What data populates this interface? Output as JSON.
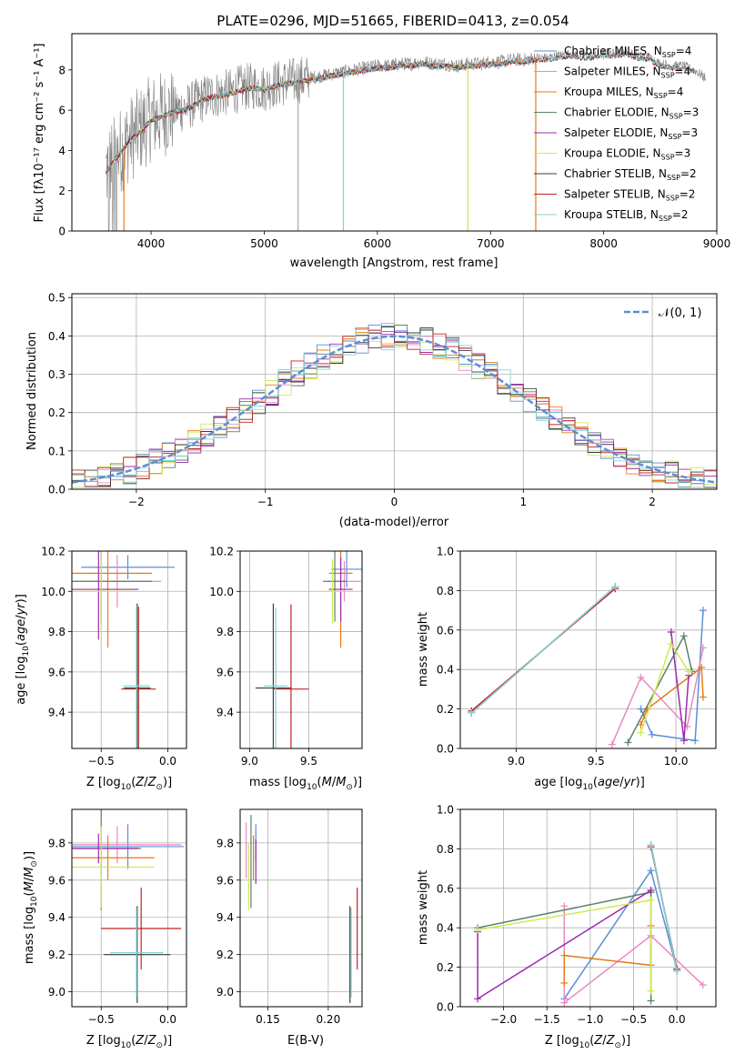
{
  "figure": {
    "title": "PLATE=0296, MJD=51665, FIBERID=0413, z=0.054"
  },
  "chart_data": [
    {
      "id": "spectrum",
      "type": "line",
      "xlabel": "wavelength [Angstrom, rest frame]",
      "ylabel": "Flux [f$_\\lambda$10$^{-17}$ erg cm$^{-2}$ s$^{-1}$ A$^{-1}$]",
      "ylabel_display": "Flux [fλ10⁻¹⁷ erg cm⁻² s⁻¹ A⁻¹]",
      "xlim": [
        3300,
        9000
      ],
      "ylim": [
        0,
        9.8
      ],
      "xticks": [
        4000,
        5000,
        6000,
        7000,
        8000,
        9000
      ],
      "yticks": [
        0,
        2,
        4,
        6,
        8
      ],
      "grid": false,
      "legend_position": "top-right",
      "data_series": {
        "name": "data",
        "color": "#808080",
        "x": [
          3600,
          3700,
          3800,
          3900,
          4000,
          4100,
          4200,
          4300,
          4400,
          4500,
          4600,
          4700,
          4800,
          4900,
          5000,
          5100,
          5200,
          5300,
          5400,
          5500,
          5600,
          5700,
          5800,
          5900,
          6000,
          6100,
          6200,
          6300,
          6400,
          6500,
          6600,
          6700,
          6800,
          6900,
          7000,
          7100,
          7200,
          7300,
          7400,
          7500,
          7600,
          7700,
          7800,
          7900,
          8000,
          8100,
          8200,
          8300,
          8400,
          8500,
          8600,
          8700,
          8800,
          8900
        ],
        "y": [
          3.0,
          3.8,
          4.5,
          5.0,
          5.6,
          5.8,
          6.0,
          6.1,
          6.4,
          6.7,
          6.8,
          6.9,
          7.1,
          7.2,
          7.1,
          7.3,
          7.4,
          7.5,
          7.6,
          7.7,
          7.8,
          7.9,
          8.0,
          8.1,
          8.2,
          8.2,
          8.3,
          8.3,
          8.4,
          8.3,
          8.3,
          8.2,
          8.3,
          8.3,
          8.4,
          8.4,
          8.5,
          8.5,
          8.6,
          8.6,
          8.7,
          8.8,
          8.7,
          8.7,
          8.8,
          8.8,
          8.9,
          8.7,
          8.6,
          8.3,
          8.2,
          8.2,
          8.0,
          7.6
        ]
      },
      "models": [
        {
          "name": "Chabrier MILES, N$_{SSP}$=4",
          "label": "Chabrier MILES, N",
          "sub": "SSP",
          "suffix": "=4",
          "color": "#5b8fd6",
          "xmax": 7400
        },
        {
          "name": "Salpeter MILES, N$_{SSP}$=4",
          "label": "Salpeter MILES, N",
          "sub": "SSP",
          "suffix": "=4",
          "color": "#e889c3",
          "xmax": 7400
        },
        {
          "name": "Kroupa MILES, N$_{SSP}$=4",
          "label": "Kroupa MILES, N",
          "sub": "SSP",
          "suffix": "=4",
          "color": "#e87a1b",
          "xmax": 7400
        },
        {
          "name": "Chabrier ELODIE, N$_{SSP}$=3",
          "label": "Chabrier ELODIE, N",
          "sub": "SSP",
          "suffix": "=3",
          "color": "#5a8466",
          "xmax": 6800
        },
        {
          "name": "Salpeter ELODIE, N$_{SSP}$=3",
          "label": "Salpeter ELODIE, N",
          "sub": "SSP",
          "suffix": "=3",
          "color": "#9a2bb0",
          "xmax": 6800
        },
        {
          "name": "Kroupa ELODIE, N$_{SSP}$=3",
          "label": "Kroupa ELODIE, N",
          "sub": "SSP",
          "suffix": "=3",
          "color": "#d2e853",
          "xmax": 6800
        },
        {
          "name": "Chabrier STELIB, N$_{SSP}$=2",
          "label": "Chabrier STELIB, N",
          "sub": "SSP",
          "suffix": "=2",
          "color": "#3d3d3d",
          "xmax": 8800
        },
        {
          "name": "Salpeter STELIB, N$_{SSP}$=2",
          "label": "Salpeter STELIB, N",
          "sub": "SSP",
          "suffix": "=2",
          "color": "#c42222",
          "xmax": 8800
        },
        {
          "name": "Kroupa STELIB, N$_{SSP}$=2",
          "label": "Kroupa STELIB, N",
          "sub": "SSP",
          "suffix": "=2",
          "color": "#7fd3d6",
          "xmax": 8800
        }
      ]
    },
    {
      "id": "residuals",
      "type": "line",
      "xlabel": "(data-model)/error",
      "ylabel": "Normed distribution",
      "xlim": [
        -2.5,
        2.5
      ],
      "ylim": [
        0,
        0.51
      ],
      "xticks": [
        -2,
        -1,
        0,
        1,
        2
      ],
      "yticks": [
        0.0,
        0.1,
        0.2,
        0.3,
        0.4,
        0.5
      ],
      "grid": true,
      "legend_position": "top-right",
      "legend": "$\\mathcal{N}(0,1)$",
      "legend_display": "𝒩(0, 1)",
      "normal_color": "#5b8fd6",
      "histogram_bin_width": 0.1
    },
    {
      "id": "age-vs-Z",
      "type": "scatter",
      "xlabel": "Z [log$_{10}$(Z/Z$_\\odot$)]",
      "ylabel": "age  [log$_{10}$(age/yr)]",
      "xlim": [
        -0.72,
        0.14
      ],
      "ylim": [
        9.22,
        10.2
      ],
      "xticks": [
        -0.5,
        0.0
      ],
      "yticks": [
        9.4,
        9.6,
        9.8,
        10.0,
        10.2
      ],
      "grid": true
    },
    {
      "id": "age-vs-mass",
      "type": "scatter",
      "xlabel": "mass [log$_{10}$(M/M$_\\odot$)]",
      "ylabel": "",
      "xlim": [
        8.92,
        9.95
      ],
      "ylim": [
        9.22,
        10.2
      ],
      "xticks": [
        9.0,
        9.5
      ],
      "yticks": [
        9.4,
        9.6,
        9.8,
        10.0,
        10.2
      ],
      "grid": true
    },
    {
      "id": "weight-vs-age",
      "type": "line",
      "xlabel": "age  [log$_{10}$(age/yr)]",
      "ylabel": "mass weight",
      "xlim": [
        8.65,
        10.25
      ],
      "ylim": [
        0,
        1.0
      ],
      "xticks": [
        9.0,
        9.5,
        10.0
      ],
      "yticks": [
        0.0,
        0.2,
        0.4,
        0.6,
        0.8,
        1.0
      ],
      "grid": true,
      "series": [
        {
          "name": "Chabrier MILES",
          "color": "#5b8fd6",
          "x": [
            9.78,
            9.85,
            10.12,
            10.17
          ],
          "y": [
            0.2,
            0.07,
            0.04,
            0.7
          ]
        },
        {
          "name": "Salpeter MILES",
          "color": "#e889c3",
          "x": [
            9.6,
            9.78,
            10.07,
            10.17
          ],
          "y": [
            0.02,
            0.36,
            0.11,
            0.51
          ]
        },
        {
          "name": "Kroupa MILES",
          "color": "#e87a1b",
          "x": [
            9.78,
            9.82,
            10.16,
            10.17
          ],
          "y": [
            0.12,
            0.2,
            0.41,
            0.26
          ]
        },
        {
          "name": "Chabrier ELODIE",
          "color": "#5a8466",
          "x": [
            9.7,
            10.05,
            10.1
          ],
          "y": [
            0.03,
            0.57,
            0.39
          ]
        },
        {
          "name": "Salpeter ELODIE",
          "color": "#9a2bb0",
          "x": [
            9.97,
            10.05,
            10.08
          ],
          "y": [
            0.59,
            0.04,
            0.37
          ]
        },
        {
          "name": "Kroupa ELODIE",
          "color": "#d2e853",
          "x": [
            9.78,
            9.97,
            10.08
          ],
          "y": [
            0.08,
            0.53,
            0.39
          ]
        },
        {
          "name": "Chabrier STELIB",
          "color": "#3d3d3d",
          "x": [
            8.72,
            9.62
          ],
          "y": [
            0.18,
            0.82
          ]
        },
        {
          "name": "Salpeter STELIB",
          "color": "#c42222",
          "x": [
            8.72,
            9.62
          ],
          "y": [
            0.19,
            0.81
          ]
        },
        {
          "name": "Kroupa STELIB",
          "color": "#7fd3d6",
          "x": [
            8.72,
            9.62
          ],
          "y": [
            0.18,
            0.82
          ]
        }
      ]
    },
    {
      "id": "mass-vs-Z",
      "type": "scatter",
      "xlabel": "Z [log$_{10}$(Z/Z$_\\odot$)]",
      "ylabel": "mass [log$_{10}$(M/M$_\\odot$)]",
      "xlim": [
        -0.72,
        0.14
      ],
      "ylim": [
        8.92,
        9.98
      ],
      "xticks": [
        -0.5,
        0.0
      ],
      "yticks": [
        9.0,
        9.2,
        9.4,
        9.6,
        9.8
      ],
      "grid": true
    },
    {
      "id": "mass-vs-ebv",
      "type": "scatter",
      "xlabel": "E(B-V)",
      "ylabel": "",
      "xlim": [
        0.127,
        0.228
      ],
      "ylim": [
        8.92,
        9.98
      ],
      "xticks": [
        0.15,
        0.2
      ],
      "yticks": [
        9.0,
        9.2,
        9.4,
        9.6,
        9.8
      ],
      "grid": true
    },
    {
      "id": "weight-vs-Z",
      "type": "line",
      "xlabel": "Z [log$_{10}$(Z/Z$_\\odot$)]",
      "ylabel": "mass weight",
      "xlim": [
        -2.5,
        0.45
      ],
      "ylim": [
        0,
        1.0
      ],
      "xticks": [
        -2.0,
        -1.5,
        -1.0,
        -0.5,
        0.0
      ],
      "yticks": [
        0.0,
        0.2,
        0.4,
        0.6,
        0.8,
        1.0
      ],
      "grid": true,
      "series": [
        {
          "name": "Chabrier MILES",
          "color": "#5b8fd6",
          "x": [
            -1.3,
            -0.3,
            0.0
          ],
          "y": [
            0.04,
            0.69,
            0.19
          ]
        },
        {
          "name": "Salpeter MILES",
          "color": "#e889c3",
          "x": [
            -1.3,
            -1.3,
            -0.3,
            0.3
          ],
          "y": [
            0.51,
            0.02,
            0.36,
            0.11
          ]
        },
        {
          "name": "Kroupa MILES",
          "color": "#e87a1b",
          "x": [
            -1.3,
            -1.3,
            -0.3,
            -0.3
          ],
          "y": [
            0.12,
            0.26,
            0.21,
            0.41
          ]
        },
        {
          "name": "Chabrier ELODIE",
          "color": "#5a8466",
          "x": [
            -2.3,
            -0.3,
            -0.3
          ],
          "y": [
            0.4,
            0.58,
            0.03
          ]
        },
        {
          "name": "Salpeter ELODIE",
          "color": "#9a2bb0",
          "x": [
            -2.3,
            -2.3,
            -0.3
          ],
          "y": [
            0.38,
            0.04,
            0.59
          ]
        },
        {
          "name": "Kroupa ELODIE",
          "color": "#d2e853",
          "x": [
            -2.3,
            -0.3,
            -0.3
          ],
          "y": [
            0.39,
            0.54,
            0.08
          ]
        },
        {
          "name": "Chabrier STELIB",
          "color": "#3d3d3d",
          "x": [
            -0.3,
            0.0
          ],
          "y": [
            0.82,
            0.18
          ]
        },
        {
          "name": "Salpeter STELIB",
          "color": "#c42222",
          "x": [
            -0.3,
            0.0
          ],
          "y": [
            0.81,
            0.19
          ]
        },
        {
          "name": "Kroupa STELIB",
          "color": "#7fd3d6",
          "x": [
            -0.3,
            0.0
          ],
          "y": [
            0.82,
            0.18
          ]
        }
      ]
    }
  ]
}
